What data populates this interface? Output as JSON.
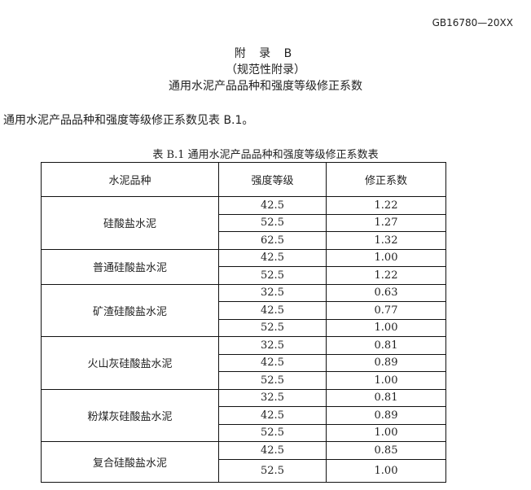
{
  "header": {
    "doc_code": "GB16780—20XX"
  },
  "appendix": {
    "title": "附 录 B",
    "type": "（规范性附录）",
    "heading": "通用水泥产品品种和强度等级修正系数"
  },
  "intro": "通用水泥产品品种和强度等级修正系数见表 B.1。",
  "table": {
    "caption": "表 B.1  通用水泥产品品种和强度等级修正系数表",
    "columns": [
      "水泥品种",
      "强度等级",
      "修正系数"
    ],
    "groups": [
      {
        "type": "硅酸盐水泥",
        "rows": [
          [
            "42.5",
            "1.22"
          ],
          [
            "52.5",
            "1.27"
          ],
          [
            "62.5",
            "1.32"
          ]
        ]
      },
      {
        "type": "普通硅酸盐水泥",
        "rows": [
          [
            "42.5",
            "1.00"
          ],
          [
            "52.5",
            "1.22"
          ]
        ]
      },
      {
        "type": "矿渣硅酸盐水泥",
        "rows": [
          [
            "32.5",
            "0.63"
          ],
          [
            "42.5",
            "0.77"
          ],
          [
            "52.5",
            "1.00"
          ]
        ]
      },
      {
        "type": "火山灰硅酸盐水泥",
        "rows": [
          [
            "32.5",
            "0.81"
          ],
          [
            "42.5",
            "0.89"
          ],
          [
            "52.5",
            "1.00"
          ]
        ]
      },
      {
        "type": "粉煤灰硅酸盐水泥",
        "rows": [
          [
            "32.5",
            "0.81"
          ],
          [
            "42.5",
            "0.89"
          ],
          [
            "52.5",
            "1.00"
          ]
        ]
      },
      {
        "type": "复合硅酸盐水泥",
        "rows": [
          [
            "42.5",
            "0.85"
          ],
          [
            "52.5",
            "1.00"
          ]
        ]
      }
    ]
  }
}
